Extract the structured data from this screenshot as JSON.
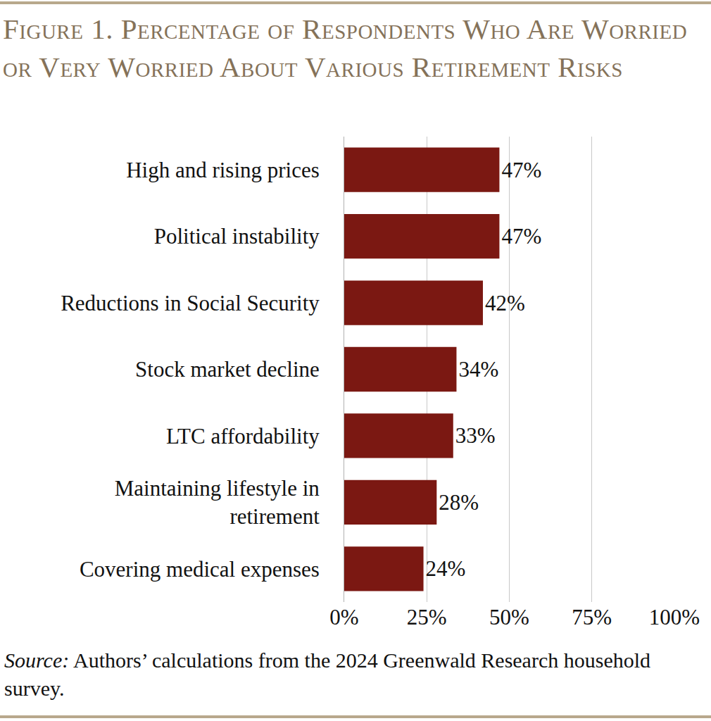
{
  "chart_data": {
    "type": "bar",
    "title": "Figure 1. Percentage of Respondents Who Are Worried or Very Worried About Various Retirement Risks",
    "source_label": "Source:",
    "source": "Authors’ calculations from the 2024 Greenwald Research household survey.",
    "orientation": "horizontal",
    "categories": [
      "High and rising prices",
      "Political instability",
      "Reductions in Social Security",
      "Stock market decline",
      "LTC affordability",
      "Maintaining lifestyle in retirement",
      "Covering medical expenses"
    ],
    "values": [
      47,
      47,
      42,
      34,
      33,
      28,
      24
    ],
    "value_labels": [
      "47%",
      "47%",
      "42%",
      "34%",
      "33%",
      "28%",
      "24%"
    ],
    "color": "#7b1812",
    "xlim": [
      0,
      100
    ],
    "xticks": [
      {
        "value": 0,
        "label": "0%"
      },
      {
        "value": 25,
        "label": "25%"
      },
      {
        "value": 50,
        "label": "50%"
      },
      {
        "value": 75,
        "label": "75%"
      },
      {
        "value": 100,
        "label": "100%"
      }
    ],
    "grid": true,
    "data_labels": true
  }
}
